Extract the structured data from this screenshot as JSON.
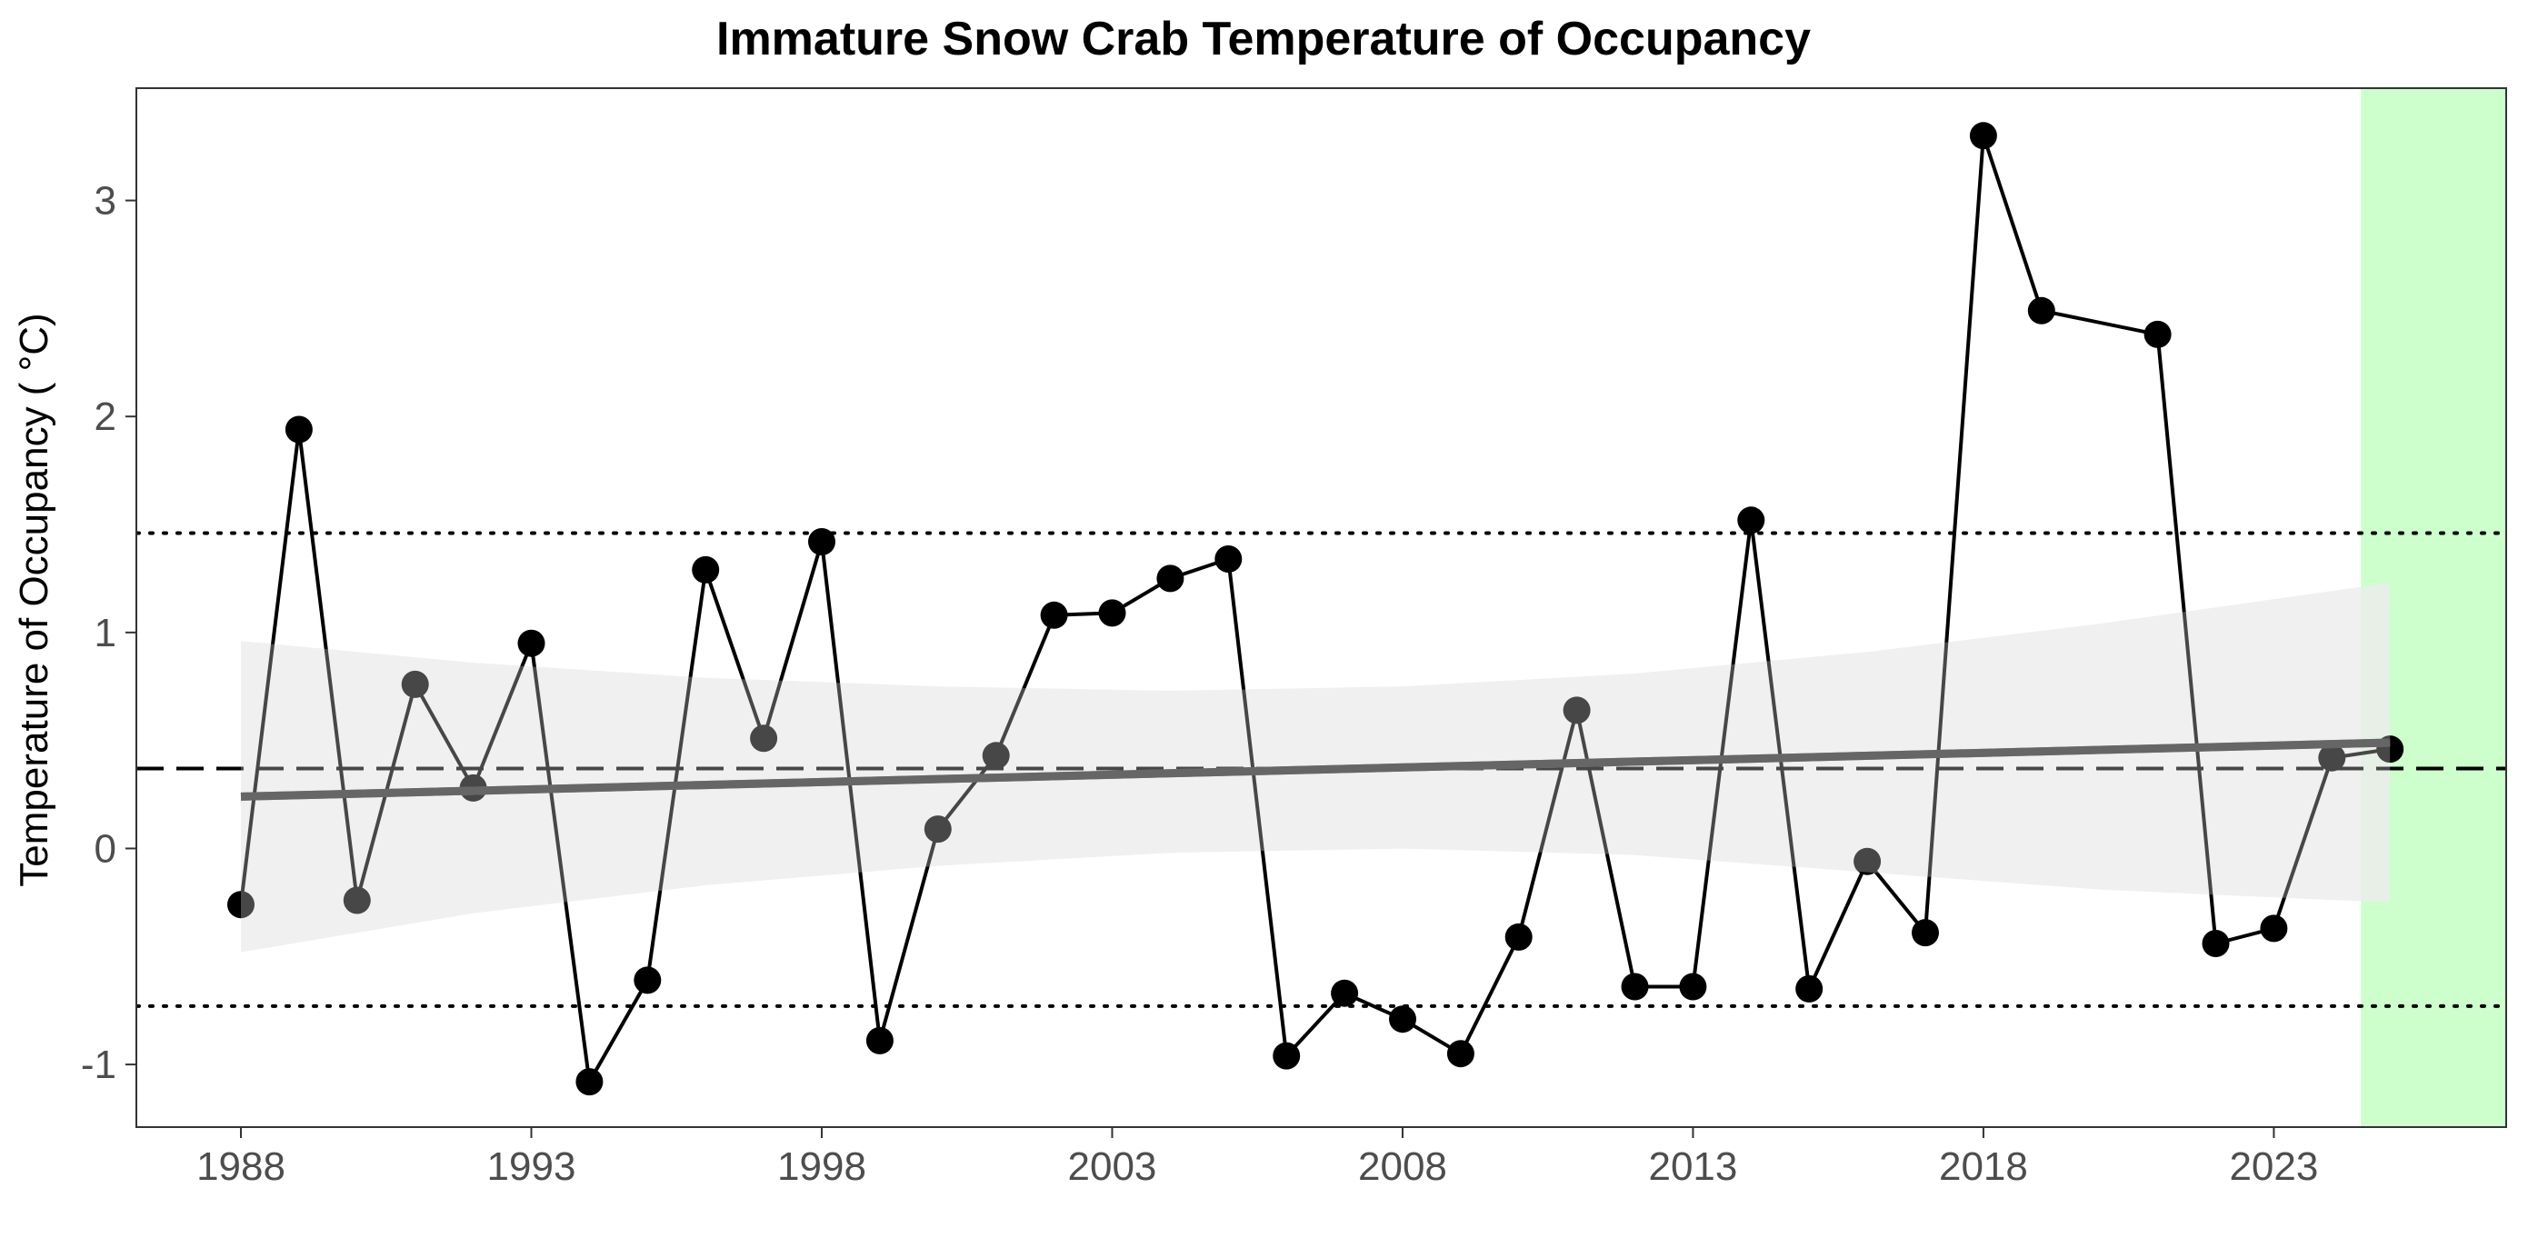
{
  "chart_data": {
    "type": "line",
    "title": "Immature Snow Crab Temperature of Occupancy",
    "xlabel": "",
    "ylabel": "Temperature of Occupancy ( °C)",
    "xlim": [
      1986.2,
      2027.0
    ],
    "ylim": [
      -1.29,
      3.52
    ],
    "x_ticks": [
      1988,
      1993,
      1998,
      2003,
      2008,
      2013,
      2018,
      2023
    ],
    "y_ticks": [
      -1,
      0,
      1,
      2,
      3
    ],
    "y_tick_labels": [
      "-1",
      "0",
      "1",
      "2",
      "3"
    ],
    "grid": false,
    "legend": "none",
    "series": [
      {
        "values_x": [
          1988,
          1989,
          1990,
          1991,
          1992,
          1993,
          1994,
          1995,
          1996,
          1997,
          1998,
          1999,
          2000,
          2001,
          2002,
          2003,
          2004,
          2005,
          2006,
          2007,
          2008,
          2009,
          2010,
          2011,
          2012,
          2013,
          2014,
          2015,
          2016,
          2017,
          2018,
          2019,
          2021,
          2022,
          2023,
          2024,
          2025
        ],
        "values_y": [
          -0.26,
          1.94,
          -0.24,
          0.76,
          0.28,
          0.95,
          -1.08,
          -0.61,
          1.29,
          0.51,
          1.42,
          -0.89,
          0.09,
          0.43,
          1.08,
          1.09,
          1.25,
          1.34,
          -0.96,
          -0.67,
          -0.79,
          -0.95,
          -0.41,
          0.64,
          -0.64,
          -0.64,
          1.52,
          -0.65,
          -0.06,
          -0.39,
          3.3,
          2.49,
          2.38,
          -0.44,
          -0.37,
          0.42,
          0.46
        ]
      }
    ],
    "reference_lines": {
      "mean": 0.37,
      "upper_sd": 1.46,
      "lower_sd": -0.73
    },
    "trend": {
      "x": [
        1988,
        2025
      ],
      "y": [
        0.24,
        0.49
      ]
    },
    "confidence_band": {
      "x": [
        1988,
        1992,
        1996,
        2000,
        2004,
        2008,
        2012,
        2016,
        2020,
        2025
      ],
      "upper": [
        0.96,
        0.86,
        0.79,
        0.75,
        0.73,
        0.75,
        0.81,
        0.91,
        1.04,
        1.23
      ],
      "lower": [
        -0.48,
        -0.3,
        -0.17,
        -0.08,
        -0.02,
        0.0,
        -0.03,
        -0.11,
        -0.19,
        -0.25
      ]
    },
    "highlight_region": {
      "x_start": 2024.5,
      "x_end": 2027.0,
      "color": "#ccffcc"
    },
    "colors": {
      "point": "#000000",
      "line": "#000000",
      "trend": "#666666",
      "band": "#e3e3e3",
      "reference": "#000000"
    }
  }
}
